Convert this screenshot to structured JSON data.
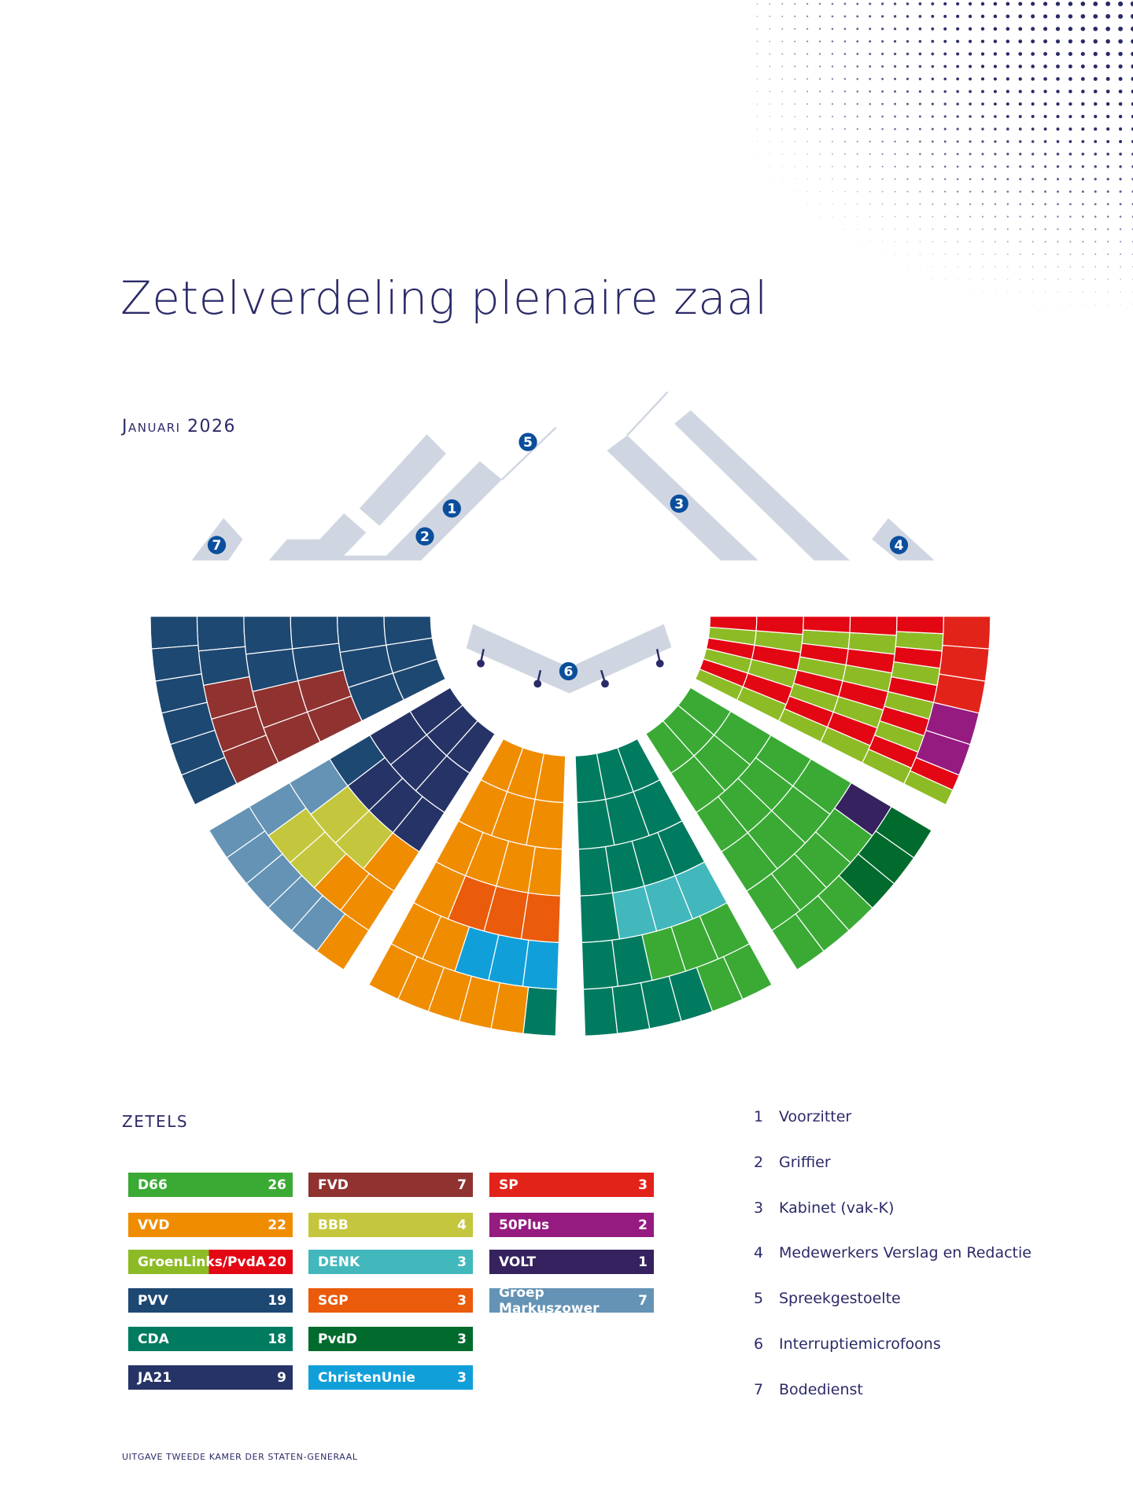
{
  "title": "Zetelverdeling plenaire zaal",
  "date": "Januari 2026",
  "legend_title": "ZETELS",
  "footer": "UITGAVE TWEEDE KAMER DER STATEN-GENERAAL",
  "parties": {
    "D66": {
      "label": "D66",
      "seats": 26,
      "color": "#3aaa35"
    },
    "VVD": {
      "label": "VVD",
      "seats": 22,
      "color": "#f08c00"
    },
    "GL": {
      "label": "GroenLinks/PvdA",
      "seats": 20,
      "color": "#e30613",
      "color2": "#8dbb25"
    },
    "PVV": {
      "label": "PVV",
      "seats": 19,
      "color": "#1d4872"
    },
    "CDA": {
      "label": "CDA",
      "seats": 18,
      "color": "#007b5f"
    },
    "JA21": {
      "label": "JA21",
      "seats": 9,
      "color": "#263366"
    },
    "FVD": {
      "label": "FVD",
      "seats": 7,
      "color": "#8f3230"
    },
    "BBB": {
      "label": "BBB",
      "seats": 4,
      "color": "#c4c73d"
    },
    "DENK": {
      "label": "DENK",
      "seats": 3,
      "color": "#42b8bd"
    },
    "SGP": {
      "label": "SGP",
      "seats": 3,
      "color": "#ea5b0c"
    },
    "PvdD": {
      "label": "PvdD",
      "seats": 3,
      "color": "#006b2d"
    },
    "CU": {
      "label": "ChristenUnie",
      "seats": 3,
      "color": "#119fda"
    },
    "SP": {
      "label": "SP",
      "seats": 3,
      "color": "#e2231a"
    },
    "50P": {
      "label": "50Plus",
      "seats": 2,
      "color": "#951b81"
    },
    "VOLT": {
      "label": "VOLT",
      "seats": 1,
      "color": "#35225e"
    },
    "GM": {
      "label": "Groep Markuszower",
      "seats": 7,
      "color": "#6493b5"
    }
  },
  "legend_columns": [
    [
      "D66",
      "VVD",
      "GL",
      "PVV",
      "CDA",
      "JA21"
    ],
    [
      "FVD",
      "BBB",
      "DENK",
      "SGP",
      "PvdD",
      "CU"
    ],
    [
      "SP",
      "50P",
      "VOLT",
      "GM"
    ]
  ],
  "key": [
    {
      "n": "1",
      "label": "Voorzitter"
    },
    {
      "n": "2",
      "label": "Griffier"
    },
    {
      "n": "3",
      "label": "Kabinet (vak-K)"
    },
    {
      "n": "4",
      "label": "Medewerkers Verslag en Redactie"
    },
    {
      "n": "5",
      "label": "Spreekgestoelte"
    },
    {
      "n": "6",
      "label": "Interruptiemicrofoons"
    },
    {
      "n": "7",
      "label": "Bodedienst"
    }
  ],
  "furniture_color": "#d0d6e1",
  "badge_color": "#0b4f9c",
  "seating": {
    "sectors": [
      [
        [
          "PVV",
          "PVV",
          "PVV"
        ],
        [
          "PVV",
          "PVV",
          "PVV"
        ],
        [
          "PVV",
          "PVV",
          "FVD",
          "FVD"
        ],
        [
          "PVV",
          "PVV",
          "FVD",
          "FVD"
        ],
        [
          "PVV",
          "PVV",
          "FVD",
          "FVD",
          "FVD"
        ],
        [
          "PVV",
          "PVV",
          "PVV",
          "PVV",
          "PVV",
          "PVV"
        ]
      ],
      [
        [
          "JA21",
          "JA21",
          "JA21"
        ],
        [
          "JA21",
          "JA21",
          "JA21"
        ],
        [
          "PVV",
          "JA21",
          "JA21",
          "JA21"
        ],
        [
          "GM",
          "BBB",
          "BBB",
          "VVD"
        ],
        [
          "GM",
          "BBB",
          "BBB",
          "VVD",
          "VVD"
        ],
        [
          "GM",
          "GM",
          "GM",
          "GM",
          "GM",
          "VVD"
        ]
      ],
      [
        [
          "VVD",
          "VVD",
          "VVD"
        ],
        [
          "VVD",
          "VVD",
          "VVD"
        ],
        [
          "VVD",
          "VVD",
          "VVD",
          "VVD"
        ],
        [
          "VVD",
          "SGP",
          "SGP",
          "SGP"
        ],
        [
          "VVD",
          "VVD",
          "CU",
          "CU",
          "CU"
        ],
        [
          "VVD",
          "VVD",
          "VVD",
          "VVD",
          "VVD",
          "CDA"
        ]
      ],
      [
        [
          "CDA",
          "CDA",
          "CDA"
        ],
        [
          "CDA",
          "CDA",
          "CDA"
        ],
        [
          "CDA",
          "CDA",
          "CDA",
          "CDA"
        ],
        [
          "CDA",
          "DENK",
          "DENK",
          "DENK"
        ],
        [
          "CDA",
          "CDA",
          "D66",
          "D66",
          "D66"
        ],
        [
          "CDA",
          "CDA",
          "CDA",
          "CDA",
          "D66",
          "D66"
        ]
      ],
      [
        [
          "D66",
          "D66",
          "D66"
        ],
        [
          "D66",
          "D66",
          "D66"
        ],
        [
          "D66",
          "D66",
          "D66",
          "D66"
        ],
        [
          "D66",
          "D66",
          "D66",
          "D66"
        ],
        [
          "D66",
          "D66",
          "D66",
          "D66",
          "VOLT"
        ],
        [
          "D66",
          "D66",
          "D66",
          "PvdD",
          "PvdD",
          "PvdD"
        ]
      ],
      [
        [
          "GL",
          "GL",
          "GL"
        ],
        [
          "GL",
          "GL",
          "GL"
        ],
        [
          "GL",
          "GL",
          "GL",
          "GL"
        ],
        [
          "GL",
          "GL",
          "GL",
          "GL"
        ],
        [
          "GL",
          "GL",
          "GL",
          "GL",
          "GL"
        ],
        [
          "GL",
          "50P",
          "50P",
          "SP",
          "SP",
          "SP"
        ]
      ]
    ]
  }
}
